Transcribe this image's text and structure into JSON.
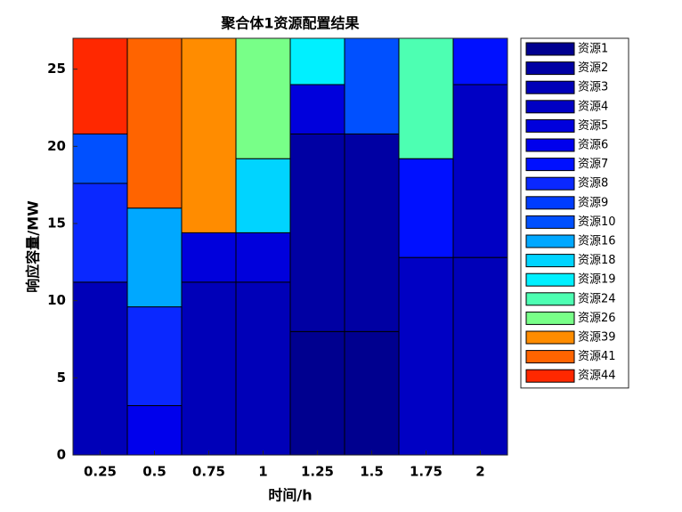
{
  "chart_data": {
    "type": "stacked-bar",
    "title": "聚合体1资源配置结果",
    "xlabel": "时间/h",
    "ylabel": "响应容量/MW",
    "categories": [
      "0.25",
      "0.5",
      "0.75",
      "1",
      "1.25",
      "1.5",
      "1.75",
      "2"
    ],
    "ylim": [
      0,
      27
    ],
    "yticks": [
      0,
      5,
      10,
      15,
      20,
      25
    ],
    "legend": "outside-right",
    "series": [
      {
        "name": "资源1",
        "color": "#00008f",
        "values": [
          0,
          0,
          0,
          0,
          8,
          8,
          0,
          0
        ]
      },
      {
        "name": "资源2",
        "color": "#0000a3",
        "values": [
          0,
          0,
          0,
          0,
          12.8,
          12.8,
          0,
          0
        ]
      },
      {
        "name": "资源3",
        "color": "#0000b8",
        "values": [
          11.2,
          0,
          11.2,
          11.2,
          0,
          0,
          0,
          12.8
        ]
      },
      {
        "name": "资源4",
        "color": "#0000c4",
        "values": [
          0,
          0,
          0,
          0,
          0,
          0,
          12.8,
          11.2
        ]
      },
      {
        "name": "资源5",
        "color": "#0000dc",
        "values": [
          0,
          0,
          3.2,
          3.2,
          3.2,
          0,
          0,
          0
        ]
      },
      {
        "name": "资源6",
        "color": "#0000ec",
        "values": [
          0,
          3.2,
          0,
          0,
          0,
          0,
          0,
          0
        ]
      },
      {
        "name": "资源7",
        "color": "#0010ff",
        "values": [
          0,
          0,
          0,
          0,
          0,
          0,
          6.4,
          3
        ]
      },
      {
        "name": "资源8",
        "color": "#0a28ff",
        "values": [
          6.4,
          6.4,
          0,
          0,
          0,
          0,
          0,
          0
        ]
      },
      {
        "name": "资源9",
        "color": "#003cff",
        "values": [
          0,
          0,
          0,
          0,
          0,
          0,
          0,
          0
        ]
      },
      {
        "name": "资源10",
        "color": "#0050ff",
        "values": [
          3.2,
          0,
          0,
          0,
          0,
          6.2,
          0,
          0
        ]
      },
      {
        "name": "资源16",
        "color": "#00a8ff",
        "values": [
          0,
          6.4,
          0,
          0,
          0,
          0,
          0,
          0
        ]
      },
      {
        "name": "资源18",
        "color": "#00d4ff",
        "values": [
          0,
          0,
          0,
          4.8,
          0,
          0,
          0,
          0
        ]
      },
      {
        "name": "资源19",
        "color": "#00f0ff",
        "values": [
          0,
          0,
          0,
          0,
          3,
          0,
          0,
          0
        ]
      },
      {
        "name": "资源24",
        "color": "#4dffb2",
        "values": [
          0,
          0,
          0,
          0,
          0,
          0,
          7.8,
          0
        ]
      },
      {
        "name": "资源26",
        "color": "#78ff88",
        "values": [
          0,
          0,
          0,
          7.8,
          0,
          0,
          0,
          0
        ]
      },
      {
        "name": "资源39",
        "color": "#ff8c00",
        "values": [
          0,
          0,
          12.6,
          0,
          0,
          0,
          0,
          0
        ]
      },
      {
        "name": "资源41",
        "color": "#ff6400",
        "values": [
          0,
          11,
          0,
          0,
          0,
          0,
          0,
          0
        ]
      },
      {
        "name": "资源44",
        "color": "#ff2800",
        "values": [
          6.2,
          0,
          0,
          0,
          0,
          0,
          0,
          0
        ]
      }
    ]
  }
}
